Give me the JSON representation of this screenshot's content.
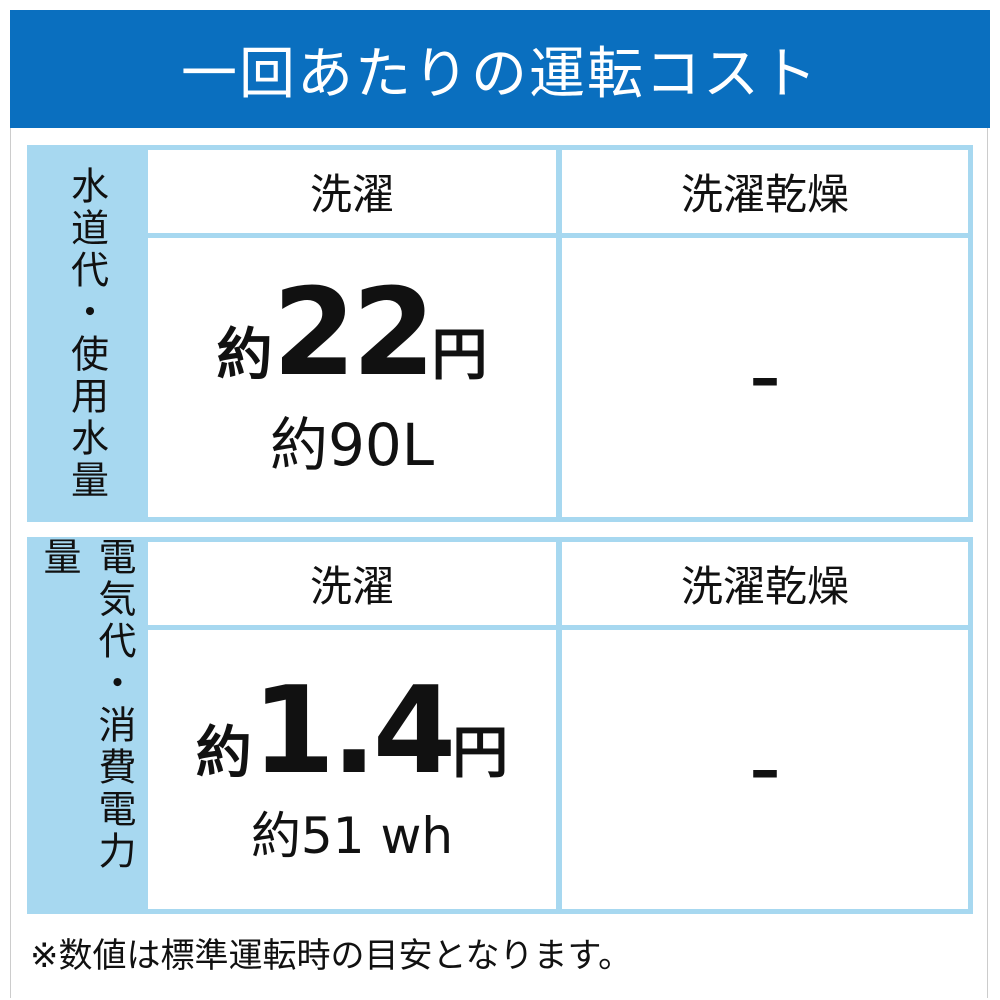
{
  "title": "一回あたりの運転コスト",
  "tables": [
    {
      "side_label": "水道代・使用水量",
      "col1": "洗濯",
      "col2": "洗濯乾燥",
      "prefix": "約",
      "value": "22",
      "unit": "円",
      "sub": "約90L",
      "col2_value": "–"
    },
    {
      "side_label": "電気代・消費電力量",
      "col1": "洗濯",
      "col2": "洗濯乾燥",
      "prefix": "約",
      "value": "1.4",
      "unit": "円",
      "sub": "約51 wh",
      "col2_value": "–"
    }
  ],
  "note": "※数値は標準運転時の目安となります。",
  "colors": {
    "header": "#0a6fbf",
    "table_accent": "#a7d8f0"
  }
}
